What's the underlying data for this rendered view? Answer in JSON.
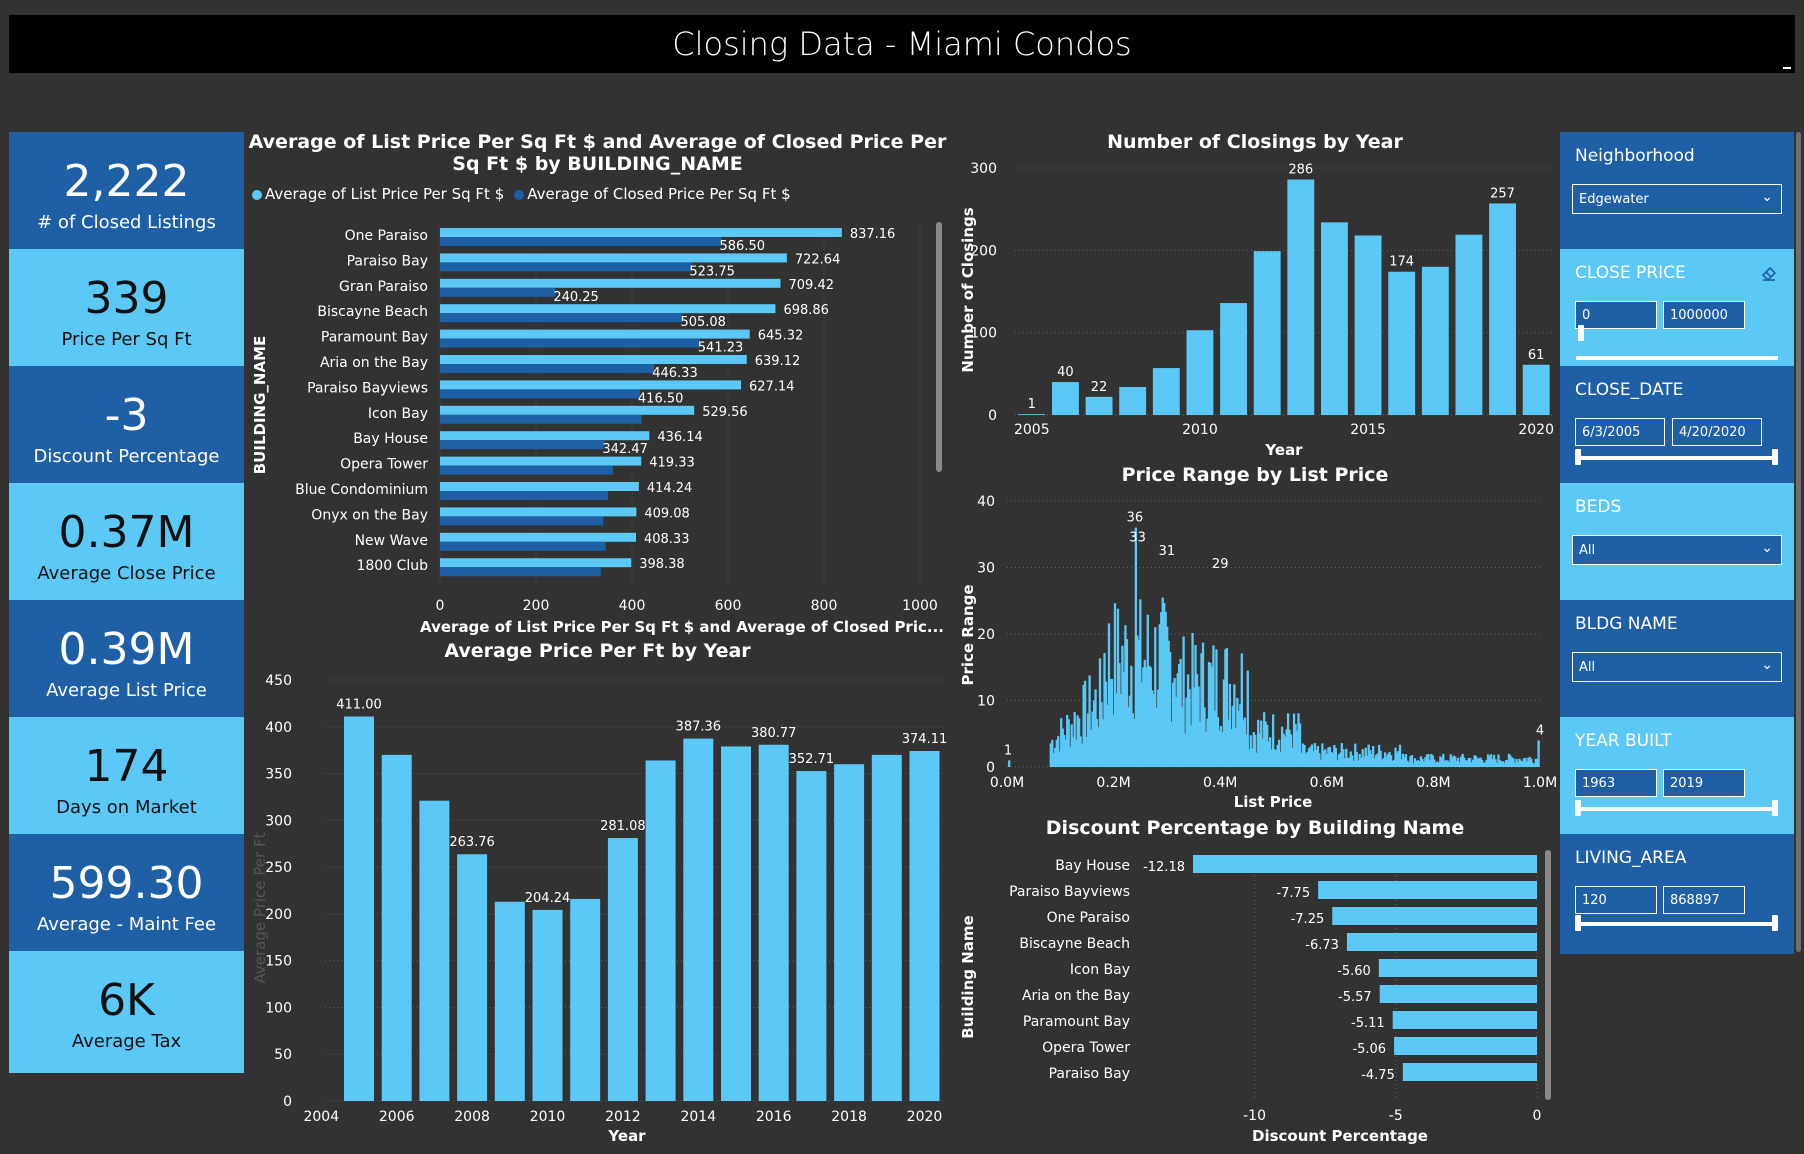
{
  "dashboard_title": "Closing Data - Miami Condos",
  "kpis": [
    {
      "value": "2,222",
      "label": "# of Closed Listings"
    },
    {
      "value": "339",
      "label": "Price Per Sq Ft"
    },
    {
      "value": "-3",
      "label": "Discount Percentage"
    },
    {
      "value": "0.37M",
      "label": "Average Close Price"
    },
    {
      "value": "0.39M",
      "label": "Average List Price"
    },
    {
      "value": "174",
      "label": "Days on Market"
    },
    {
      "value": "599.30",
      "label": "Average - Maint Fee"
    },
    {
      "value": "6K",
      "label": "Average Tax"
    }
  ],
  "colors": {
    "list": "#5bc8f5",
    "closed": "#1f5fa6",
    "bar": "#5bc8f5"
  },
  "slicers": {
    "neighborhood": {
      "title": "Neighborhood",
      "value": "Edgewater"
    },
    "close_price": {
      "title": "CLOSE PRICE",
      "min": "0",
      "max": "1000000",
      "icon": "eraser-icon"
    },
    "close_date": {
      "title": "CLOSE_DATE",
      "min": "6/3/2005",
      "max": "4/20/2020"
    },
    "beds": {
      "title": "BEDS",
      "value": "All"
    },
    "bldg_name": {
      "title": "BLDG NAME",
      "value": "All"
    },
    "year_built": {
      "title": "YEAR BUILT",
      "min": "1963",
      "max": "2019"
    },
    "living_area": {
      "title": "LIVING_AREA",
      "min": "120",
      "max": "868897"
    }
  },
  "chart_data": [
    {
      "id": "price_per_sqft_by_building",
      "type": "bar",
      "orientation": "horizontal",
      "title": "Average of List Price Per Sq Ft $ and Average of Closed Price Per Sq Ft $ by BUILDING_NAME",
      "xlabel": "Average of List Price Per Sq Ft $ and Average of Closed Pric...",
      "ylabel": "BUILDING_NAME",
      "xlim": [
        0,
        1000
      ],
      "xticks": [
        "0",
        "200",
        "400",
        "600",
        "800",
        "1000"
      ],
      "legend": [
        "Average of List Price Per Sq Ft $",
        "Average of Closed Price Per Sq Ft $"
      ],
      "categories": [
        "One Paraiso",
        "Paraiso Bay",
        "Gran Paraiso",
        "Biscayne Beach",
        "Paramount Bay",
        "Aria on the Bay",
        "Paraiso Bayviews",
        "Icon Bay",
        "Bay House",
        "Opera Tower",
        "Blue Condominium",
        "Onyx on the Bay",
        "New Wave",
        "1800 Club"
      ],
      "series": [
        {
          "name": "Average of List Price Per Sq Ft $",
          "values": [
            837.16,
            722.64,
            709.42,
            698.86,
            645.32,
            639.12,
            627.14,
            529.56,
            436.14,
            419.33,
            414.24,
            409.08,
            408.33,
            398.38
          ],
          "labels": [
            "837.16",
            "722.64",
            "709.42",
            "698.86",
            "645.32",
            "639.12",
            "627.14",
            "529.56",
            "436.14",
            "419.33",
            "414.24",
            "409.08",
            "408.33",
            "398.38"
          ]
        },
        {
          "name": "Average of Closed Price Per Sq Ft $",
          "values": [
            586.5,
            523.75,
            240.25,
            505.08,
            541.23,
            446.33,
            416.5,
            420,
            342.47,
            360,
            350,
            340,
            345,
            335
          ],
          "labels": [
            "586.50",
            "523.75",
            "240.25",
            "505.08",
            "541.23",
            "446.33",
            "416.50",
            "",
            "342.47",
            "",
            "",
            "",
            "",
            ""
          ]
        }
      ]
    },
    {
      "id": "closings_by_year",
      "type": "bar",
      "title": "Number of Closings by Year",
      "xlabel": "Year",
      "ylabel": "Number of Closings",
      "ylim": [
        0,
        300
      ],
      "yticks": [
        "0",
        "100",
        "200",
        "300"
      ],
      "xticks": [
        "2005",
        "2010",
        "2015",
        "2020"
      ],
      "x": [
        2005,
        2006,
        2007,
        2008,
        2009,
        2010,
        2011,
        2012,
        2013,
        2014,
        2015,
        2016,
        2017,
        2018,
        2019,
        2020
      ],
      "values": [
        1,
        40,
        22,
        34,
        57,
        103,
        136,
        199,
        286,
        234,
        218,
        174,
        180,
        219,
        257,
        61
      ],
      "labels": [
        "1",
        "40",
        "22",
        "",
        "",
        "",
        "",
        "",
        "286",
        "",
        "",
        "174",
        "",
        "",
        "257",
        "61"
      ]
    },
    {
      "id": "price_range_by_list_price",
      "type": "bar",
      "title": "Price Range by List Price",
      "xlabel": "List Price",
      "ylabel": "Price Range",
      "ylim": [
        0,
        40
      ],
      "yticks": [
        "0",
        "10",
        "20",
        "30",
        "40"
      ],
      "xticks": [
        "0.0M",
        "0.2M",
        "0.4M",
        "0.6M",
        "0.8M",
        "1.0M"
      ],
      "xlim": [
        0,
        1.0
      ],
      "annotations": [
        {
          "x": 0.002,
          "y": 1,
          "text": "1"
        },
        {
          "x": 0.24,
          "y": 36,
          "text": "36"
        },
        {
          "x": 0.245,
          "y": 33,
          "text": "33"
        },
        {
          "x": 0.3,
          "y": 31,
          "text": "31"
        },
        {
          "x": 0.4,
          "y": 29,
          "text": "29"
        },
        {
          "x": 1.0,
          "y": 4,
          "text": "4"
        }
      ]
    },
    {
      "id": "discount_by_building",
      "type": "bar",
      "orientation": "horizontal",
      "title": "Discount Percentage by Building Name",
      "xlabel": "Discount Percentage",
      "ylabel": "Building Name",
      "xlim": [
        -12.18,
        0
      ],
      "xticks": [
        "-10",
        "-5",
        "0"
      ],
      "categories": [
        "Bay House",
        "Paraiso Bayviews",
        "One Paraiso",
        "Biscayne Beach",
        "Icon Bay",
        "Aria on the Bay",
        "Paramount Bay",
        "Opera Tower",
        "Paraiso Bay"
      ],
      "values": [
        -12.18,
        -7.75,
        -7.25,
        -6.73,
        -5.6,
        -5.57,
        -5.11,
        -5.06,
        -4.75
      ],
      "labels": [
        "-12.18",
        "-7.75",
        "-7.25",
        "-6.73",
        "-5.60",
        "-5.57",
        "-5.11",
        "-5.06",
        "-4.75"
      ]
    },
    {
      "id": "avg_price_per_ft_by_year",
      "type": "bar",
      "title": "Average Price Per Ft by Year",
      "xlabel": "Year",
      "ylabel": "Average Price Per Ft",
      "ylim": [
        0,
        450
      ],
      "yticks": [
        "0",
        "50",
        "100",
        "150",
        "200",
        "250",
        "300",
        "350",
        "400",
        "450"
      ],
      "xticks": [
        "2004",
        "2006",
        "2008",
        "2010",
        "2012",
        "2014",
        "2016",
        "2018",
        "2020"
      ],
      "x": [
        2005,
        2006,
        2007,
        2008,
        2009,
        2010,
        2011,
        2012,
        2013,
        2014,
        2015,
        2016,
        2017,
        2018,
        2019,
        2020
      ],
      "values": [
        411.0,
        370,
        321,
        263.76,
        213,
        204.24,
        216,
        281.08,
        364,
        387.36,
        379,
        380.77,
        352.71,
        360,
        370,
        374.11
      ],
      "labels": [
        "411.00",
        "",
        "",
        "263.76",
        "",
        "204.24",
        "",
        "281.08",
        "",
        "387.36",
        "",
        "380.77",
        "352.71",
        "",
        "",
        "374.11"
      ]
    }
  ]
}
